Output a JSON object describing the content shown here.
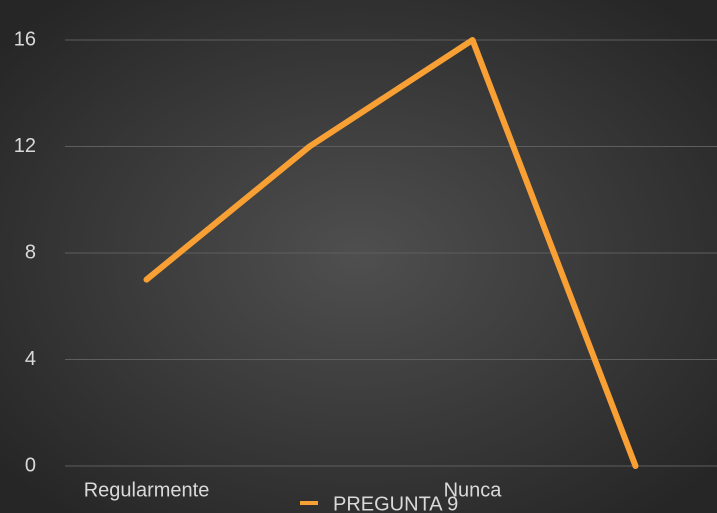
{
  "chart_data": {
    "type": "line",
    "categories": [
      "Regularmente",
      null,
      "Nunca",
      null
    ],
    "series": [
      {
        "name": "PREGUNTA 9",
        "color": "#f9a035",
        "values": [
          7,
          12,
          16,
          0
        ]
      }
    ],
    "ylim": [
      0,
      16
    ],
    "yticks": [
      0,
      4,
      8,
      12,
      16
    ],
    "grid": true,
    "legend": "bottom"
  }
}
